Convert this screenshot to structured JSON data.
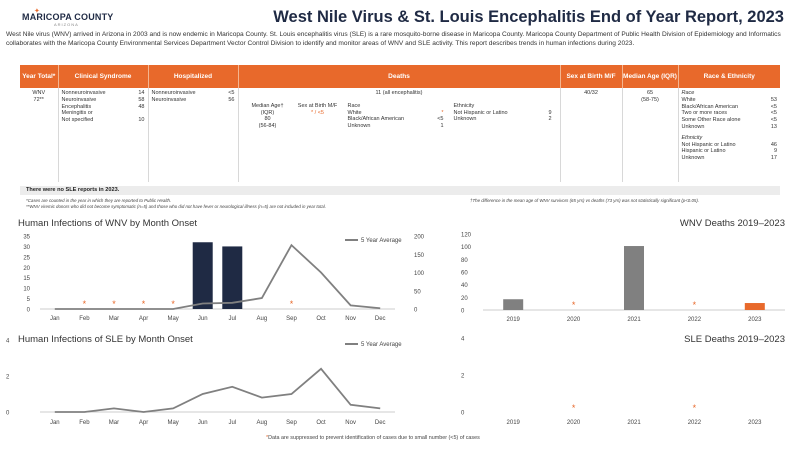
{
  "header": {
    "logo_text": "MARICOPA COUNTY",
    "logo_sub": "ARIZONA",
    "title": "West Nile Virus & St. Louis Encephalitis End of Year Report, 2023"
  },
  "intro": "West Nile virus (WNV) arrived in Arizona in 2003 and is now endemic in Maricopa County. St. Louis encephalitis virus (SLE) is a rare mosquito-borne disease in Maricopa County. Maricopa County Department of Public Health Division of Epidemiology and Informatics collaborates with the Maricopa County Environmental Services Department Vector Control Division to identify and monitor areas of WNV and SLE activity. This report describes trends in human infections during 2023.",
  "table": {
    "headers": {
      "year": "Year Total*",
      "syndrome": "Clinical Syndrome",
      "hospitalized": "Hospitalized",
      "deaths": "Deaths",
      "sex": "Sex at Birth M/F",
      "age": "Median Age (IQR)",
      "race": "Race & Ethnicity"
    },
    "year_label": "WNV",
    "year_total": "72**",
    "syndrome": [
      {
        "k": "Nonneuroinvasive",
        "v": "14"
      },
      {
        "k": "Neuroinvasive",
        "v": "58"
      },
      {
        "k": "Encephalitis",
        "v": "48"
      },
      {
        "k": "Meningitis or",
        "v": ""
      },
      {
        "k": "Not specified",
        "v": "10"
      }
    ],
    "hospitalized": [
      {
        "k": "Nonneuroinvasive",
        "v": "<5"
      },
      {
        "k": "Neuroinvasive",
        "v": "56"
      }
    ],
    "deaths_total": "11 (all encephalitis)",
    "deaths_age_label": "Median Age† (IQR)",
    "deaths_age_value": "80",
    "deaths_age_iqr": "(56-84)",
    "deaths_sex_label": "Sex at Birth M/F",
    "deaths_sex_value": "* / <5",
    "deaths_race_title": "Race",
    "deaths_race": [
      {
        "k": "White",
        "v": "*"
      },
      {
        "k": "Black/African American",
        "v": "<5"
      },
      {
        "k": "Unknown",
        "v": "1"
      }
    ],
    "deaths_eth_title": "Ethnicity",
    "deaths_eth": [
      {
        "k": "Not Hispanic or Latino",
        "v": "9"
      },
      {
        "k": "Unknown",
        "v": "2"
      }
    ],
    "sex_value": "40/32",
    "age_value": "65",
    "age_iqr": "(58-75)",
    "race_title": "Race",
    "race": [
      {
        "k": "White",
        "v": "53"
      },
      {
        "k": "Black/African American",
        "v": "<5"
      },
      {
        "k": "Two or more races",
        "v": "<5"
      },
      {
        "k": "Some Other Race alone",
        "v": "<5"
      },
      {
        "k": "Unknown",
        "v": "13"
      }
    ],
    "eth_title": "Ethnicity",
    "eth": [
      {
        "k": "Not Hispanic or Latino",
        "v": "46"
      },
      {
        "k": "Hispanic or Latino",
        "v": "9"
      },
      {
        "k": "Unknown",
        "v": "17"
      }
    ]
  },
  "sle_note": "There were no SLE reports in 2023.",
  "footnotes": {
    "left1": "*Cases are counted in the year in which they are reported to Public Health.",
    "left2": "**WNV viremic donors who did not become symptomatic (n=5) and those who did not have fever or neurological illness (n=5) are not included in year total.",
    "right": "†The difference in the mean age of WNV survivors (65 yrs) vs deaths (73 yrs) was not statistically significant (p<0.05)."
  },
  "bottom_note": "Data are suppressed to prevent identification of cases due to small number (<5) of cases",
  "colors": {
    "orange": "#e8692b",
    "navy": "#1f2a44",
    "gray": "#808080"
  },
  "chart_data": [
    {
      "type": "bar",
      "title": "Human Infections of WNV by Month Onset",
      "categories": [
        "Jan",
        "Feb",
        "Mar",
        "Apr",
        "May",
        "Jun",
        "Jul",
        "Aug",
        "Sep",
        "Oct",
        "Nov",
        "Dec"
      ],
      "series": [
        {
          "values": [
            0,
            0,
            0,
            0,
            0,
            32,
            30,
            0,
            0,
            0,
            0,
            0
          ],
          "suppressed": [
            false,
            true,
            true,
            true,
            true,
            false,
            false,
            false,
            true,
            false,
            false,
            false
          ]
        },
        {
          "name": "5 Year Average",
          "type": "line",
          "axis": "right",
          "values": [
            0,
            0,
            0,
            0,
            0,
            15,
            17,
            30,
            175,
            100,
            10,
            2
          ]
        }
      ],
      "yticks": [
        0,
        5,
        10,
        15,
        20,
        25,
        30,
        35
      ],
      "ylim": [
        0,
        35
      ],
      "y2ticks": [
        0,
        50,
        100,
        150,
        200
      ],
      "y2lim": [
        0,
        200
      ]
    },
    {
      "type": "bar",
      "title": "WNV Deaths 2019–2023",
      "categories": [
        "2019",
        "2020",
        "2021",
        "2022",
        "2023"
      ],
      "values": [
        17,
        0,
        101,
        0,
        11
      ],
      "suppressed": [
        false,
        true,
        false,
        true,
        false
      ],
      "colors": [
        "#808080",
        "#808080",
        "#808080",
        "#808080",
        "#e8692b"
      ],
      "yticks": [
        0,
        20,
        40,
        60,
        80,
        100,
        120
      ],
      "ylim": [
        0,
        120
      ]
    },
    {
      "type": "line",
      "title": "Human Infections of SLE by Month Onset",
      "categories": [
        "Jan",
        "Feb",
        "Mar",
        "Apr",
        "May",
        "Jun",
        "Jul",
        "Aug",
        "Sep",
        "Oct",
        "Nov",
        "Dec"
      ],
      "series": [
        {
          "name": "5 Year Average",
          "values": [
            0,
            0,
            0.2,
            0,
            0.2,
            1,
            1.4,
            0.8,
            1,
            2.4,
            0.4,
            0.2
          ]
        }
      ],
      "yticks": [
        0,
        2,
        4
      ],
      "ylim": [
        0,
        4
      ]
    },
    {
      "type": "bar",
      "title": "SLE Deaths 2019–2023",
      "categories": [
        "2019",
        "2020",
        "2021",
        "2022",
        "2023"
      ],
      "values": [
        0,
        0,
        0,
        0,
        0
      ],
      "suppressed": [
        false,
        true,
        false,
        true,
        false
      ],
      "yticks": [
        0,
        2,
        4
      ],
      "ylim": [
        0,
        4
      ]
    }
  ]
}
